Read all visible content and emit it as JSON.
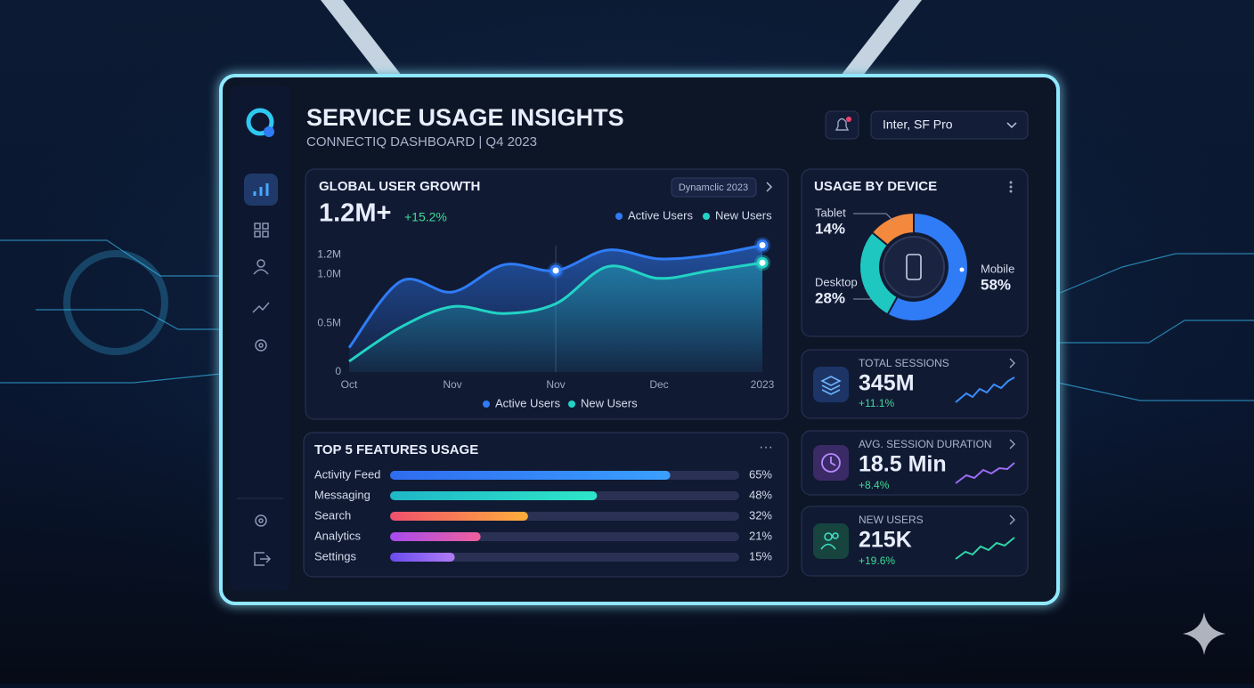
{
  "header": {
    "title": "SERVICE USAGE INSIGHTS",
    "subtitle": "CONNECTIQ DASHBOARD | Q4 2023",
    "font_select": "Inter, SF Pro"
  },
  "kpis": [
    {
      "label": "TOTAL SESSIONS",
      "value": "345M",
      "change": "+11.1%"
    },
    {
      "label": "AVG. SESSION DURATION",
      "value": "18.5 Min",
      "change": "+8.4%"
    },
    {
      "label": "NEW USERS",
      "value": "215K",
      "change": "+19.6%"
    }
  ],
  "chart_data": [
    {
      "type": "line",
      "title": "GLOBAL USER GROWTH",
      "badge": "Dynamclic 2023",
      "headline": "1.2M+",
      "change": "+15.2%",
      "categories": [
        "Oct",
        null,
        "Nov",
        null,
        "Nov",
        null,
        "Dec",
        null,
        "2023"
      ],
      "series": [
        {
          "name": "Active Users",
          "color": "#2f7cf6",
          "values": [
            0.25,
            0.93,
            0.82,
            1.1,
            1.04,
            1.25,
            1.16,
            1.2,
            1.3
          ]
        },
        {
          "name": "New Users",
          "color": "#22d3c5",
          "values": [
            0.11,
            0.46,
            0.67,
            0.6,
            0.7,
            1.08,
            0.96,
            1.04,
            1.12
          ]
        }
      ],
      "ylim": [
        0,
        1.35
      ],
      "yticks": [
        0,
        {
          "value": 0.5,
          "label": "0.5M"
        },
        {
          "value": 1.0,
          "label": "1.0M"
        },
        {
          "value": 1.2,
          "label": "1.2M"
        },
        {
          "value": 1.2,
          "label": "1.2M"
        }
      ],
      "grid": false
    },
    {
      "type": "pie",
      "title": "USAGE BY DEVICE",
      "categories": [
        "Tablet",
        "Desktop",
        "Mobile"
      ],
      "values": [
        14,
        28,
        58
      ],
      "value_labels": [
        "14%",
        "28%",
        "58%"
      ],
      "colors": [
        "#f2893d",
        "#1fc7c1",
        "#2f7cf6"
      ]
    },
    {
      "type": "bar",
      "title": "TOP 5 FEATURES USAGE",
      "categories": [
        "Activity Feed",
        "Messaging",
        "Search",
        "Analytics",
        "Settings"
      ],
      "values": [
        65,
        48,
        32,
        21,
        15
      ],
      "value_labels": [
        "65%",
        "48%",
        "32%",
        "21%",
        "15%"
      ],
      "colors": [
        [
          "#2f6cf0",
          "#3aa0ff"
        ],
        [
          "#1fb7c7",
          "#2ee6c9"
        ],
        [
          "#f0506e",
          "#ffae3a"
        ],
        [
          "#a64bf0",
          "#f0609a"
        ],
        [
          "#6a4cf0",
          "#b07cf5"
        ]
      ],
      "xlim": [
        0,
        81
      ]
    }
  ]
}
